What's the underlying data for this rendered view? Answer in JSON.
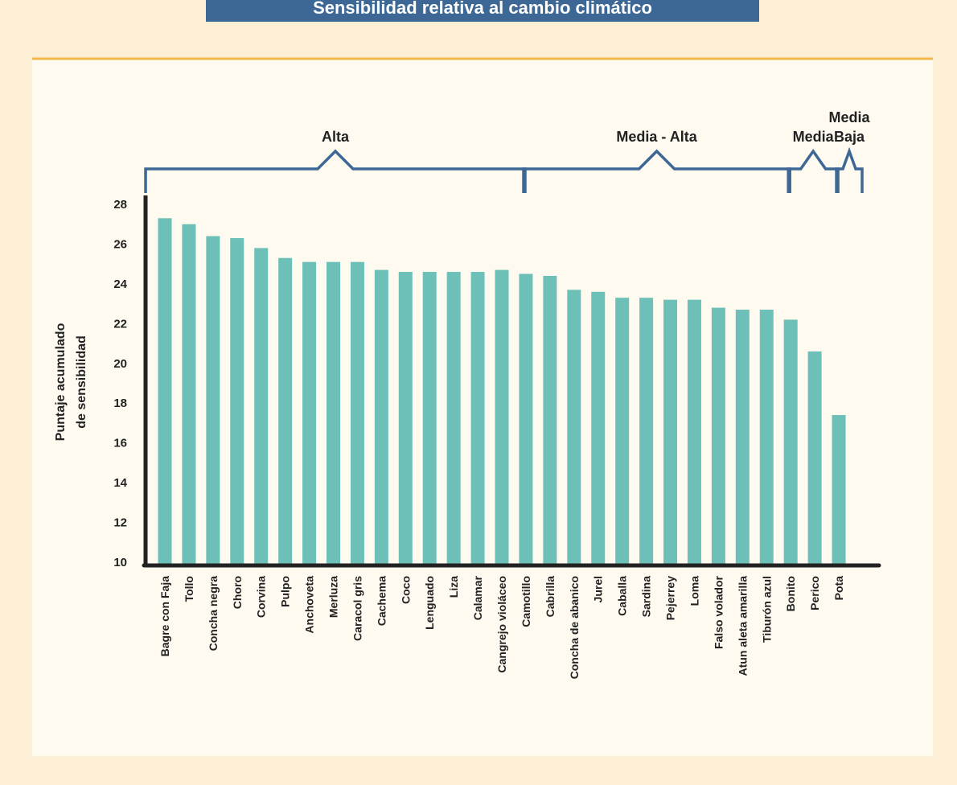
{
  "chart_data": {
    "type": "bar",
    "title": "Sensibilidad relativa al cambio climático",
    "y_label": [
      "Puntaje acumulado",
      "de sensibilidad"
    ],
    "categories": [
      "Bagre con Faja",
      "Tollo",
      "Concha negra",
      "Choro",
      "Corvina",
      "Pulpo",
      "Anchoveta",
      "Merluza",
      "Caracol gris",
      "Cachema",
      "Coco",
      "Lenguado",
      "Liza",
      "Calamar",
      "Cangrejo violáceo",
      "Camotillo",
      "Cabrilla",
      "Concha de abanico",
      "Jurel",
      "Caballa",
      "Sardina",
      "Pejerrey",
      "Loma",
      "Falso volador",
      "Atun aleta amarilla",
      "Tiburón azul",
      "Bonito",
      "Perico",
      "Pota"
    ],
    "values": [
      27.3,
      27.0,
      26.4,
      26.3,
      25.8,
      25.3,
      25.1,
      25.1,
      25.1,
      24.7,
      24.6,
      24.6,
      24.6,
      24.6,
      24.7,
      24.5,
      24.4,
      23.7,
      23.6,
      23.3,
      23.3,
      23.2,
      23.2,
      22.8,
      22.7,
      22.7,
      22.2,
      20.6,
      17.4
    ],
    "color": "#6dc0b8",
    "ylim": [
      10,
      28
    ],
    "yticks": [
      10,
      12,
      14,
      16,
      18,
      20,
      22,
      24,
      26,
      28
    ],
    "groups": [
      {
        "label": [
          "Alta"
        ],
        "start": 0,
        "end": 14
      },
      {
        "label": [
          "Media - Alta"
        ],
        "start": 15,
        "end": 25
      },
      {
        "label": [
          "Media"
        ],
        "start": 26,
        "end": 27
      },
      {
        "label": [
          "Media",
          "Baja"
        ],
        "start": 28,
        "end": 28
      }
    ]
  }
}
